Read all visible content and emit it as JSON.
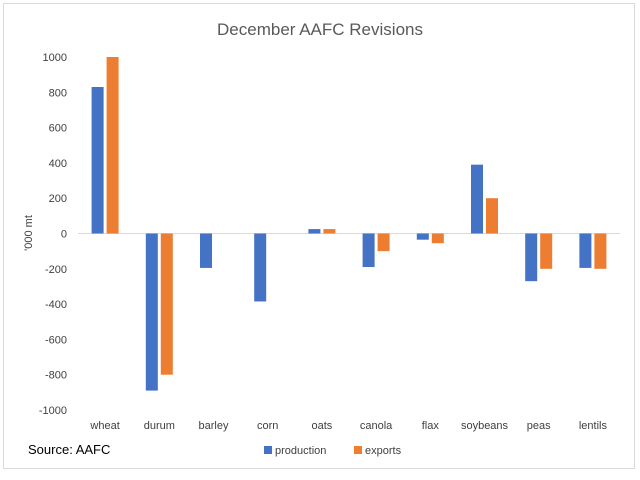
{
  "chart_data": {
    "type": "bar",
    "title": "December AAFC Revisions",
    "xlabel": "",
    "ylabel": "'000 mt",
    "ylim": [
      -1000,
      1000
    ],
    "yticks": [
      1000,
      800,
      600,
      400,
      200,
      0,
      -200,
      -400,
      -600,
      -800,
      -1000
    ],
    "categories": [
      "wheat",
      "durum",
      "barley",
      "corn",
      "oats",
      "canola",
      "flax",
      "soybeans",
      "peas",
      "lentils"
    ],
    "series": [
      {
        "name": "production",
        "color": "#4472C4",
        "values": [
          830,
          -890,
          -195,
          -385,
          25,
          -190,
          -35,
          390,
          -270,
          -195
        ]
      },
      {
        "name": "exports",
        "color": "#ED7D31",
        "values": [
          1000,
          -800,
          0,
          0,
          25,
          -100,
          -55,
          200,
          -200,
          -200
        ]
      }
    ],
    "legend": "bottom-center",
    "source": "Source: AAFC"
  }
}
